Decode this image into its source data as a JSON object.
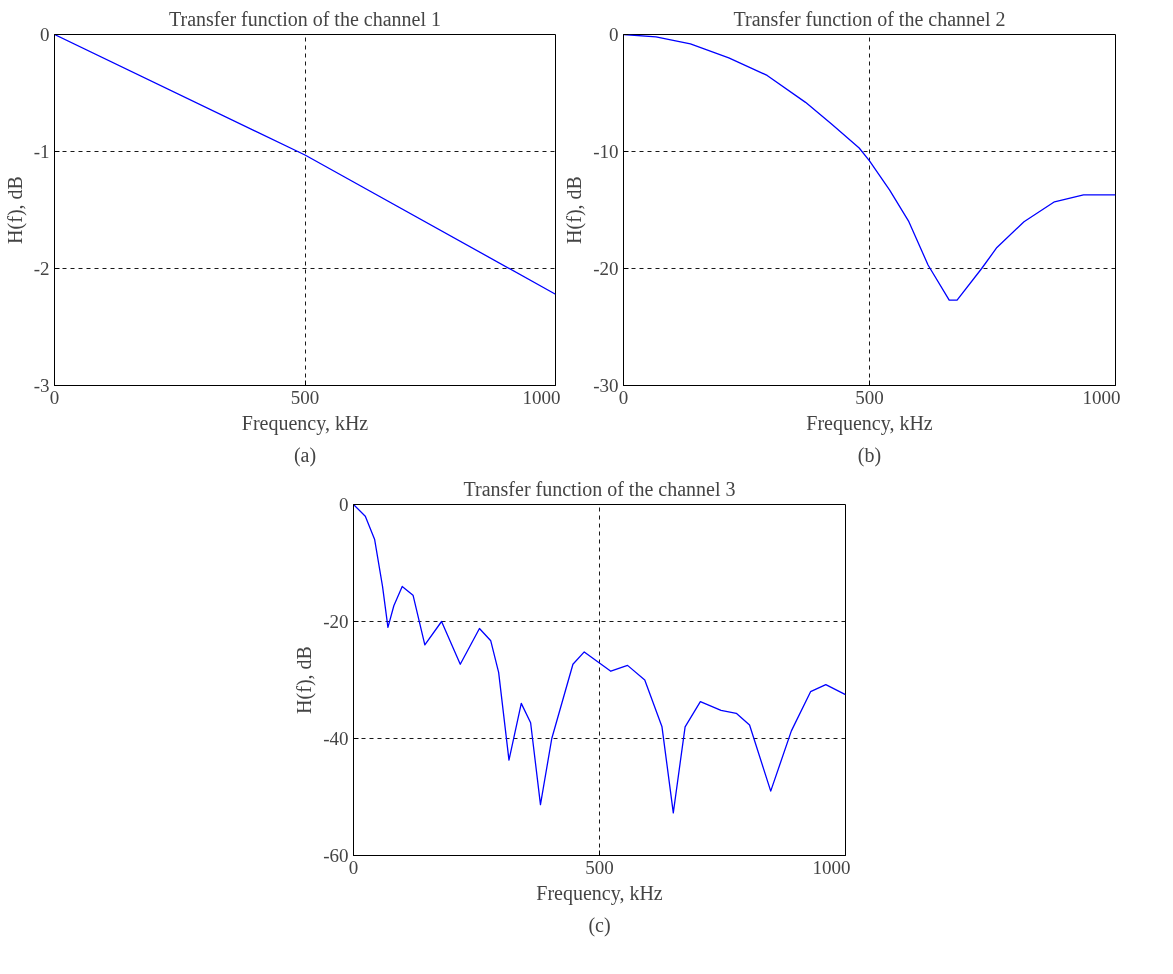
{
  "chart_data": [
    {
      "type": "line",
      "title": "Transfer function of the channel 1",
      "xlabel": "Frequency, kHz",
      "ylabel": "H(f), dB",
      "annotations": [
        "(a)"
      ],
      "xlim": [
        0,
        1000
      ],
      "ylim": [
        -3,
        0
      ],
      "xticks": [
        0,
        500,
        1000
      ],
      "yticks": [
        -3,
        -2,
        -1,
        0
      ],
      "grid": true,
      "line_style": "solid",
      "series": [
        {
          "color": "#0000ff",
          "x": [
            0,
            500,
            1000
          ],
          "values": [
            0,
            -1.03,
            -2.22
          ]
        }
      ]
    },
    {
      "type": "line",
      "title": "Transfer function of the channel 2",
      "xlabel": "Frequency, kHz",
      "ylabel": "H(f), dB",
      "annotations": [
        "(b)"
      ],
      "xlim": [
        0,
        1000
      ],
      "ylim": [
        -30,
        0
      ],
      "xticks": [
        0,
        500,
        1000
      ],
      "yticks": [
        -30,
        -20,
        -10,
        0
      ],
      "grid": true,
      "line_style": "solid",
      "series": [
        {
          "color": "#0000ff",
          "x": [
            0,
            66,
            136,
            214,
            292,
            370,
            424,
            479,
            500,
            541,
            580,
            619,
            662,
            678,
            728,
            759,
            814,
            876,
            935,
            1000
          ],
          "values": [
            0,
            -0.2,
            -0.8,
            -2,
            -3.5,
            -5.8,
            -7.7,
            -9.7,
            -10.8,
            -13.3,
            -16,
            -19.7,
            -22.7,
            -22.7,
            -20,
            -18.2,
            -16,
            -14.3,
            -13.7,
            -13.7
          ]
        }
      ]
    },
    {
      "type": "line",
      "title": "Transfer function of the channel 3",
      "xlabel": "Frequency, kHz",
      "ylabel": "H(f), dB",
      "annotations": [
        "(c)"
      ],
      "xlim": [
        0,
        1000
      ],
      "ylim": [
        -60,
        0
      ],
      "xticks": [
        0,
        500,
        1000
      ],
      "yticks": [
        -60,
        -40,
        -20,
        0
      ],
      "grid": true,
      "line_style": "solid",
      "series": [
        {
          "color": "#0000ff",
          "x": [
            0,
            24,
            43,
            59,
            70,
            82,
            99,
            121,
            145,
            179,
            217,
            256,
            279,
            295,
            316,
            341,
            360,
            380,
            403,
            446,
            469,
            523,
            557,
            592,
            627,
            650,
            674,
            705,
            747,
            778,
            805,
            848,
            890,
            929,
            960,
            1000
          ],
          "values": [
            0,
            -2,
            -6,
            -14,
            -21,
            -17.3,
            -14,
            -15.5,
            -24,
            -20,
            -27.3,
            -21.2,
            -23.3,
            -28.7,
            -43.7,
            -34,
            -37.3,
            -51.3,
            -40,
            -27.3,
            -25.2,
            -28.5,
            -27.5,
            -30,
            -38,
            -52.7,
            -38,
            -33.7,
            -35.2,
            -35.7,
            -37.7,
            -49,
            -38.7,
            -32,
            -30.8,
            -32.5
          ]
        }
      ]
    }
  ]
}
